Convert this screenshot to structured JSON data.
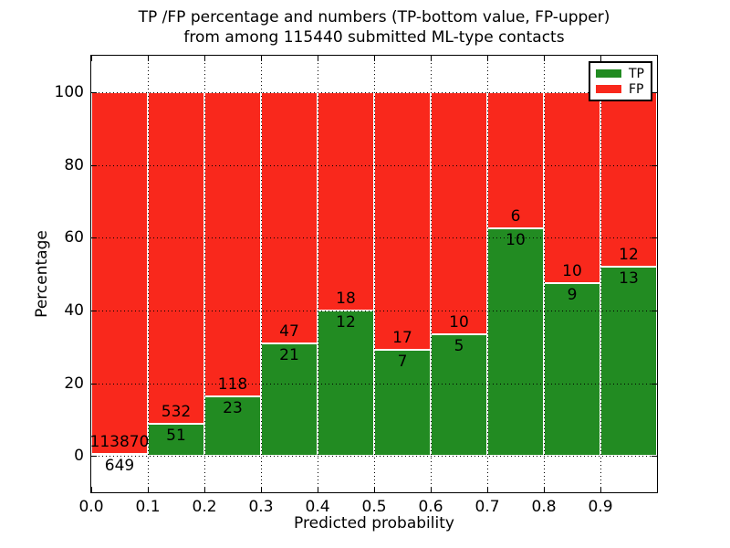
{
  "title": {
    "line1": "TP /FP percentage and numbers (TP-bottom value, FP-upper)",
    "line2": "from among 115440 submitted ML-type contacts"
  },
  "axes": {
    "xlabel": "Predicted probability",
    "ylabel": "Percentage"
  },
  "legend": {
    "items": [
      {
        "label": "TP",
        "color": "#228b22"
      },
      {
        "label": "FP",
        "color": "#f9281c"
      }
    ]
  },
  "colors": {
    "tp": "#228b22",
    "fp": "#f9281c",
    "grid": "#000000",
    "frame": "#000000",
    "background": "#ffffff"
  },
  "chart_data": {
    "type": "bar",
    "stacked": true,
    "normalized": "each bin scaled to 100%",
    "title": "TP /FP percentage and numbers (TP-bottom value, FP-upper) from among 115440 submitted ML-type contacts",
    "xlabel": "Predicted probability",
    "ylabel": "Percentage",
    "xlim": [
      0.0,
      1.0
    ],
    "ylim": [
      -10,
      110
    ],
    "xticks": [
      "0.0",
      "0.1",
      "0.2",
      "0.3",
      "0.4",
      "0.5",
      "0.6",
      "0.7",
      "0.8",
      "0.9"
    ],
    "yticks": [
      0,
      20,
      40,
      60,
      80,
      100
    ],
    "grid": true,
    "legend_position": "upper right",
    "bin_width": 0.1,
    "bin_starts": [
      0.0,
      0.1,
      0.2,
      0.3,
      0.4,
      0.5,
      0.6,
      0.7,
      0.8,
      0.9
    ],
    "series": [
      {
        "name": "TP",
        "color": "#228b22",
        "counts": [
          649,
          51,
          23,
          21,
          12,
          7,
          5,
          10,
          9,
          13
        ]
      },
      {
        "name": "FP",
        "color": "#f9281c",
        "counts": [
          113870,
          532,
          118,
          47,
          18,
          17,
          10,
          6,
          10,
          12
        ]
      }
    ],
    "tp_percent": [
      0.57,
      8.75,
      16.31,
      30.88,
      40.0,
      29.17,
      33.33,
      62.5,
      47.37,
      52.0
    ],
    "total_contacts": 115440
  }
}
